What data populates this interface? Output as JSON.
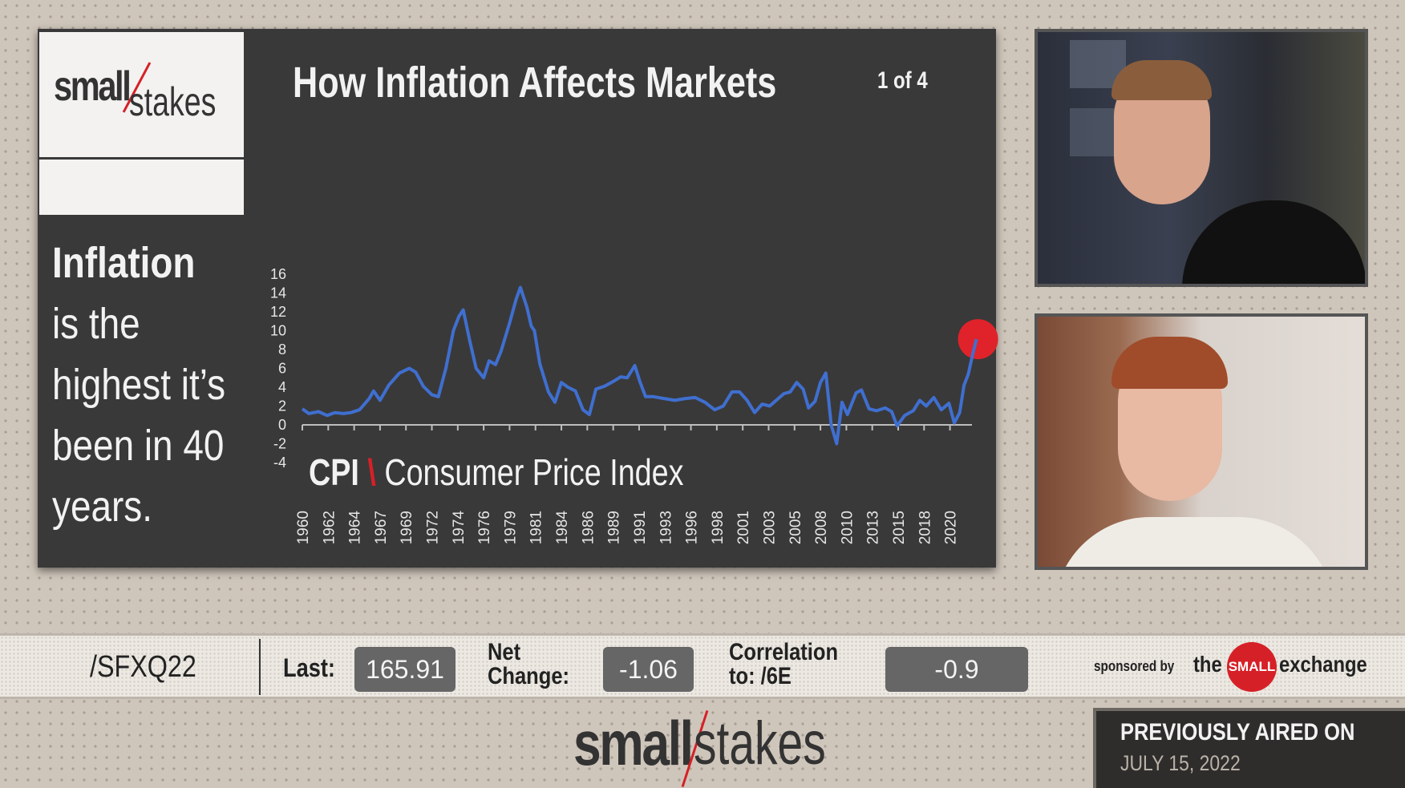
{
  "slide": {
    "logo": {
      "bold": "small",
      "light": "stakes"
    },
    "side_text": {
      "bold": "Inflation",
      "rest": " is the highest it’s been in 40 years."
    },
    "title": "How Inflation Affects Markets",
    "pager": "1 of 4",
    "chart_label": {
      "bold": "CPI",
      "sep": "\\",
      "rest": "Consumer Price Index"
    }
  },
  "chart_data": {
    "type": "line",
    "ylim": [
      -4,
      16
    ],
    "yticks": [
      "16",
      "14",
      "12",
      "10",
      "8",
      "6",
      "4",
      "2",
      "0",
      "-2",
      "-4"
    ],
    "xtick_labels": [
      "1960",
      "1962",
      "1964",
      "1967",
      "1969",
      "1972",
      "1974",
      "1976",
      "1979",
      "1981",
      "1984",
      "1986",
      "1989",
      "1991",
      "1993",
      "1996",
      "1998",
      "2001",
      "2003",
      "2005",
      "2008",
      "2010",
      "2013",
      "2015",
      "2018",
      "2020"
    ],
    "series": [
      {
        "color": "#3f6fd0",
        "x": [
          1960,
          1960.6,
          1961.5,
          1962.3,
          1963,
          1963.8,
          1964.5,
          1965.3,
          1966.2,
          1966.6,
          1967.2,
          1968,
          1969,
          1969.9,
          1970.5,
          1971.2,
          1972,
          1972.6,
          1973.3,
          1974,
          1974.5,
          1974.9,
          1975.5,
          1976.1,
          1976.8,
          1977.3,
          1977.9,
          1978.4,
          1979.2,
          1979.8,
          1980.2,
          1980.8,
          1981.2,
          1981.5,
          1982,
          1982.8,
          1983.4,
          1984,
          1984.6,
          1985.3,
          1986,
          1986.6,
          1987.2,
          1988,
          1988.8,
          1989.5,
          1990.1,
          1990.8,
          1991.3,
          1991.8,
          1992.5,
          1993.5,
          1994.5,
          1995.5,
          1996.4,
          1997.3,
          1998.2,
          1999,
          1999.8,
          2000.5,
          2001.2,
          2001.9,
          2002.6,
          2003.3,
          2004,
          2004.6,
          2005.2,
          2005.8,
          2006.4,
          2006.9,
          2007.5,
          2008,
          2008.5,
          2009,
          2009.5,
          2010,
          2010.5,
          2011.3,
          2011.8,
          2012.5,
          2013.2,
          2014,
          2014.6,
          2015.1,
          2015.8,
          2016.6,
          2017.2,
          2017.8,
          2018.5,
          2019.2,
          2019.9,
          2020.4,
          2020.9,
          2021.3,
          2021.7,
          2022.1,
          2022.45
        ],
        "y": [
          1.7,
          1.2,
          1.4,
          1.0,
          1.3,
          1.2,
          1.3,
          1.6,
          2.8,
          3.6,
          2.6,
          4.2,
          5.5,
          6.0,
          5.6,
          4.1,
          3.2,
          3.0,
          6.0,
          10.0,
          11.5,
          12.2,
          9.0,
          6.0,
          5.0,
          6.8,
          6.4,
          7.8,
          10.8,
          13.3,
          14.6,
          12.5,
          10.5,
          10.0,
          6.5,
          3.5,
          2.4,
          4.5,
          4.0,
          3.6,
          1.6,
          1.1,
          3.8,
          4.1,
          4.6,
          5.1,
          5.0,
          6.3,
          4.5,
          3.0,
          3.0,
          2.8,
          2.6,
          2.8,
          2.9,
          2.4,
          1.6,
          2.0,
          3.5,
          3.5,
          2.6,
          1.3,
          2.2,
          2.0,
          2.7,
          3.3,
          3.5,
          4.5,
          3.8,
          1.8,
          2.5,
          4.5,
          5.5,
          0.0,
          -2.0,
          2.4,
          1.1,
          3.4,
          3.7,
          1.7,
          1.5,
          1.8,
          1.4,
          -0.1,
          1.0,
          1.5,
          2.6,
          2.0,
          2.9,
          1.6,
          2.3,
          0.2,
          1.3,
          4.2,
          5.4,
          7.5,
          9.1
        ]
      }
    ],
    "highlight": {
      "x": 2022.45,
      "y": 9.1,
      "color": "#e0232a"
    }
  },
  "ticker": {
    "symbol": "/SFXQ22",
    "last_label": "Last:",
    "last_value": "165.91",
    "net_label_1": "Net",
    "net_label_2": "Change:",
    "net_value": "-1.06",
    "corr_label_1": "Correlation",
    "corr_label_2": "to:  /6E",
    "corr_value": "-0.9",
    "sponsor_prefix": "sponsored by",
    "sponsor_the": "the",
    "sponsor_small": "SMALL",
    "sponsor_exchange": "exchange"
  },
  "footer": {
    "logo_bold": "small",
    "logo_light": "stakes",
    "aired_label": "PREVIOUSLY AIRED ON",
    "aired_date": "JULY 15, 2022"
  }
}
